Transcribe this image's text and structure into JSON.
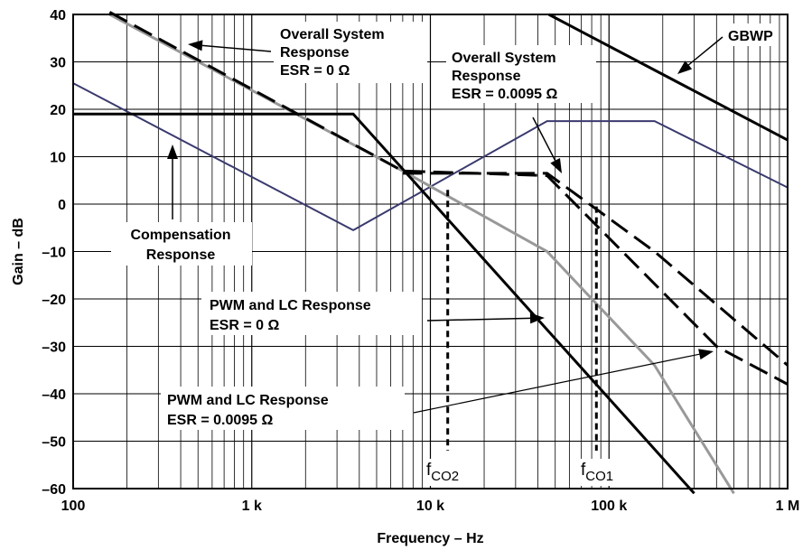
{
  "chart_data": {
    "type": "line",
    "x_scale": "log",
    "xlim": [
      100,
      1000000
    ],
    "ylim": [
      -60,
      40
    ],
    "xlabel": "Frequency – Hz",
    "ylabel": "Gain – dB",
    "x_ticks": [
      {
        "value": 100,
        "label": "100"
      },
      {
        "value": 1000,
        "label": "1 k"
      },
      {
        "value": 10000,
        "label": "10 k"
      },
      {
        "value": 100000,
        "label": "100 k"
      },
      {
        "value": 1000000,
        "label": "1 M"
      }
    ],
    "y_ticks": [
      40,
      30,
      20,
      10,
      0,
      -10,
      -20,
      -30,
      -40,
      -50,
      -60
    ],
    "grid": true,
    "series": [
      {
        "id": "overall-esr0",
        "color": "#000000",
        "dash": "long-dash",
        "width": 3,
        "points": [
          [
            160,
            40.5
          ],
          [
            7000,
            7
          ],
          [
            45000,
            6
          ],
          [
            400000,
            -30
          ],
          [
            1000000,
            -38
          ]
        ]
      },
      {
        "id": "overall-esr0095",
        "color": "#000000",
        "dash": "long-dash",
        "width": 3,
        "points": [
          [
            7000,
            6.5
          ],
          [
            45000,
            6.5
          ],
          [
            180000,
            -10
          ],
          [
            1000000,
            -34
          ]
        ]
      },
      {
        "id": "compensation",
        "color": "#3a3a6e",
        "dash": "solid",
        "width": 2,
        "points": [
          [
            100,
            25.5
          ],
          [
            3700,
            -5.5
          ],
          [
            45000,
            17.5
          ],
          [
            180000,
            17.5
          ],
          [
            1000000,
            3.5
          ]
        ]
      },
      {
        "id": "pwm-lc-esr0",
        "color": "#000000",
        "dash": "solid",
        "width": 3,
        "points": [
          [
            100,
            19
          ],
          [
            3700,
            19
          ],
          [
            300000,
            -61
          ]
        ]
      },
      {
        "id": "pwm-lc-esr0095",
        "color": "#999999",
        "dash": "solid",
        "width": 3,
        "points": [
          [
            160,
            40
          ],
          [
            7000,
            7
          ],
          [
            45000,
            -10
          ],
          [
            180000,
            -34
          ],
          [
            500000,
            -61
          ]
        ]
      },
      {
        "id": "gbwp",
        "color": "#000000",
        "dash": "solid",
        "width": 3,
        "points": [
          [
            46000,
            40
          ],
          [
            1000000,
            13.5
          ]
        ]
      },
      {
        "id": "fco2-marker",
        "color": "#000000",
        "dash": "short-dash",
        "width": 3,
        "points": [
          [
            12500,
            3
          ],
          [
            12500,
            -52
          ]
        ]
      },
      {
        "id": "fco1-marker",
        "color": "#000000",
        "dash": "short-dash",
        "width": 3,
        "points": [
          [
            85000,
            -0.5
          ],
          [
            85000,
            -52
          ]
        ]
      }
    ],
    "annotations": [
      {
        "id": "overall-esr0",
        "lines": [
          "Overall System",
          "Response",
          "ESR = 0 Ω"
        ]
      },
      {
        "id": "overall-esr0095",
        "lines": [
          "Overall System",
          "Response",
          "ESR = 0.0095 Ω"
        ]
      },
      {
        "id": "gbwp",
        "lines": [
          "GBWP"
        ]
      },
      {
        "id": "compensation",
        "lines": [
          "Compensation",
          "Response"
        ]
      },
      {
        "id": "pwm-esr0",
        "lines": [
          "PWM and LC Response",
          "ESR = 0 Ω"
        ]
      },
      {
        "id": "pwm-esr0095",
        "lines": [
          "PWM and LC Response",
          "ESR = 0.0095 Ω"
        ]
      },
      {
        "id": "fco2",
        "main": "f",
        "sub": "CO2"
      },
      {
        "id": "fco1",
        "main": "f",
        "sub": "CO1"
      }
    ]
  }
}
